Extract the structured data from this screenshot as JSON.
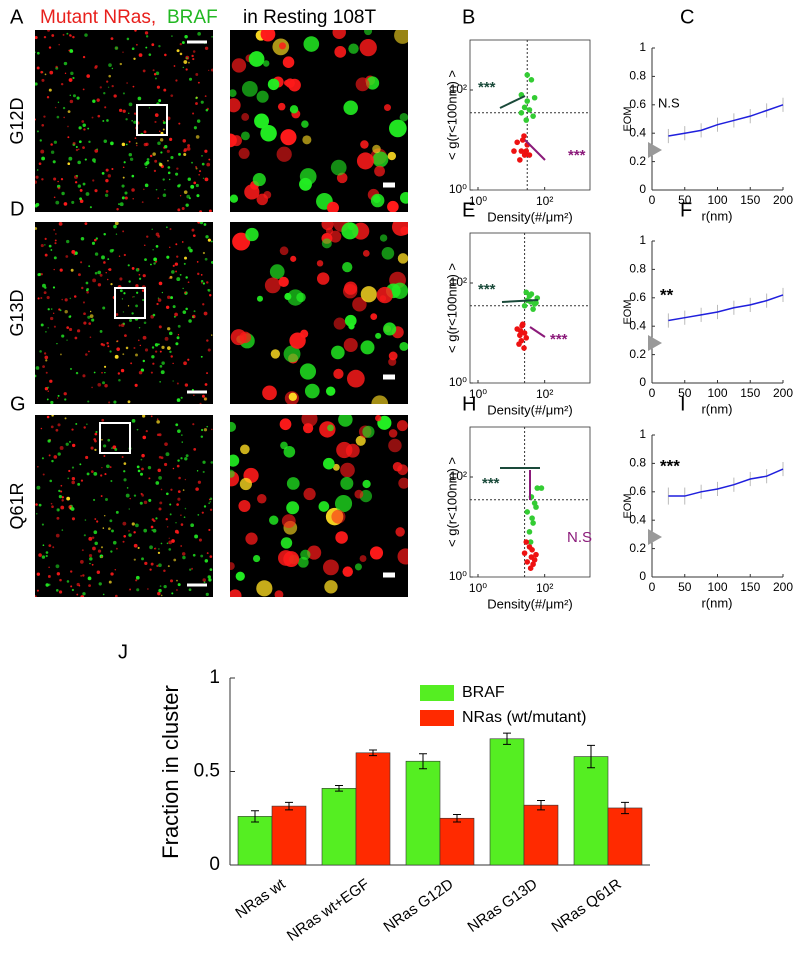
{
  "figure": {
    "header": {
      "label": "A",
      "parts": [
        {
          "text": "Mutant NRas,",
          "color": "#e8201c"
        },
        {
          "text": "BRAF",
          "color": "#22b822"
        },
        {
          "text": "in Resting 108T",
          "color": "#000000"
        }
      ]
    },
    "image_rows": [
      {
        "label": "A",
        "row": "G12D"
      },
      {
        "label": "D",
        "row": "G13D"
      },
      {
        "label": "G",
        "row": "Q61R"
      }
    ]
  },
  "chart_data": [
    {
      "type": "scatter",
      "label": "B",
      "xlabel": "Density(#/μm²)",
      "ylabel": "< g(r<100nm) >",
      "log": true,
      "xlim": [
        1,
        1000
      ],
      "ylim": [
        1,
        1000
      ],
      "xticks": [
        {
          "value": 1,
          "label": "10⁰"
        },
        {
          "value": 100,
          "label": "10²"
        }
      ],
      "yticks": [
        {
          "value": 1,
          "label": "10⁰"
        },
        {
          "value": 100,
          "label": "10²"
        }
      ],
      "reflines": {
        "x": 30,
        "y": 35
      },
      "series": [
        {
          "color": "#33cc33",
          "x": [
            20,
            30,
            40,
            30,
            25,
            35,
            45,
            20,
            28,
            50
          ],
          "y": [
            80,
            200,
            160,
            60,
            45,
            40,
            30,
            35,
            25,
            70
          ]
        },
        {
          "color": "#ee1111",
          "x": [
            15,
            20,
            25,
            18,
            30,
            22,
            28,
            35,
            12,
            24
          ],
          "y": [
            9,
            6,
            5,
            4,
            8,
            10,
            6,
            5,
            6,
            12
          ]
        }
      ],
      "annotations": [
        {
          "text": "***",
          "color": "#1a4a3a"
        },
        {
          "text": "***",
          "color": "#8b1a7a"
        }
      ]
    },
    {
      "type": "line",
      "label": "C",
      "xlabel": "r(nm)",
      "ylabel": "EOM",
      "xlim": [
        0,
        200
      ],
      "ylim": [
        0,
        1
      ],
      "xticks": [
        0,
        50,
        100,
        150,
        200
      ],
      "yticks": [
        0,
        0.2,
        0.4,
        0.6,
        0.8,
        1
      ],
      "x": [
        25,
        50,
        75,
        100,
        125,
        150,
        175,
        200
      ],
      "series": [
        {
          "color": "#1f1fdd",
          "values": [
            0.38,
            0.4,
            0.42,
            0.46,
            0.49,
            0.52,
            0.56,
            0.6
          ],
          "errors": [
            0.05,
            0.05,
            0.05,
            0.05,
            0.05,
            0.05,
            0.05,
            0.05
          ]
        }
      ],
      "annotations": [
        {
          "text": "N.S",
          "color": "#000000"
        }
      ]
    },
    {
      "type": "scatter",
      "label": "E",
      "xlabel": "Density(#/μm²)",
      "ylabel": "< g(r<100nm) >",
      "log": true,
      "xlim": [
        1,
        1000
      ],
      "ylim": [
        1,
        1000
      ],
      "xticks": [
        {
          "value": 1,
          "label": "10⁰"
        },
        {
          "value": 100,
          "label": "10²"
        }
      ],
      "yticks": [
        {
          "value": 1,
          "label": "10⁰"
        },
        {
          "value": 100,
          "label": "10²"
        }
      ],
      "reflines": {
        "x": 25,
        "y": 35
      },
      "series": [
        {
          "color": "#33cc33",
          "x": [
            30,
            40,
            55,
            25,
            45,
            60,
            35,
            50,
            28,
            38
          ],
          "y": [
            45,
            60,
            40,
            35,
            30,
            50,
            55,
            38,
            65,
            42
          ]
        },
        {
          "color": "#ee1111",
          "x": [
            15,
            18,
            22,
            20,
            25,
            17,
            28,
            24,
            19,
            21
          ],
          "y": [
            12,
            9,
            15,
            7,
            10,
            6,
            8,
            5,
            11,
            14
          ]
        }
      ],
      "annotations": [
        {
          "text": "***",
          "color": "#1a4a3a"
        },
        {
          "text": "***",
          "color": "#8b1a7a"
        }
      ]
    },
    {
      "type": "line",
      "label": "F",
      "xlabel": "r(nm)",
      "ylabel": "EOM",
      "xlim": [
        0,
        200
      ],
      "ylim": [
        0,
        1
      ],
      "xticks": [
        0,
        50,
        100,
        150,
        200
      ],
      "yticks": [
        0,
        0.2,
        0.4,
        0.6,
        0.8,
        1
      ],
      "x": [
        25,
        50,
        75,
        100,
        125,
        150,
        175,
        200
      ],
      "series": [
        {
          "color": "#1f1fdd",
          "values": [
            0.44,
            0.46,
            0.48,
            0.5,
            0.53,
            0.55,
            0.58,
            0.62
          ],
          "errors": [
            0.05,
            0.05,
            0.05,
            0.05,
            0.05,
            0.05,
            0.05,
            0.05
          ]
        }
      ],
      "annotations": [
        {
          "text": "**",
          "color": "#000000"
        }
      ]
    },
    {
      "type": "scatter",
      "label": "H",
      "xlabel": "Density(#/μm²)",
      "ylabel": "< g(r<100nm) >",
      "log": true,
      "xlim": [
        1,
        1000
      ],
      "ylim": [
        1,
        1000
      ],
      "xticks": [
        {
          "value": 1,
          "label": "10⁰"
        },
        {
          "value": 100,
          "label": "10²"
        }
      ],
      "yticks": [
        {
          "value": 1,
          "label": "10⁰"
        },
        {
          "value": 100,
          "label": "10²"
        }
      ],
      "reflines": {
        "x": 25,
        "y": 35
      },
      "series": [
        {
          "color": "#33cc33",
          "x": [
            40,
            60,
            30,
            45,
            35,
            80,
            50,
            38,
            42,
            55
          ],
          "y": [
            40,
            60,
            20,
            12,
            8,
            60,
            30,
            5,
            15,
            25
          ]
        },
        {
          "color": "#ee1111",
          "x": [
            30,
            40,
            25,
            45,
            35,
            50,
            38,
            28,
            55,
            42
          ],
          "y": [
            2,
            2.5,
            3,
            1.8,
            4,
            2.2,
            1.5,
            5,
            2.8,
            3.5
          ]
        }
      ],
      "annotations": [
        {
          "text": "***",
          "color": "#1a4a3a"
        },
        {
          "text": "N.S",
          "color": "#8b1a7a"
        }
      ]
    },
    {
      "type": "line",
      "label": "I",
      "xlabel": "r(nm)",
      "ylabel": "EOM",
      "xlim": [
        0,
        200
      ],
      "ylim": [
        0,
        1
      ],
      "xticks": [
        0,
        50,
        100,
        150,
        200
      ],
      "yticks": [
        0,
        0.2,
        0.4,
        0.6,
        0.8,
        1
      ],
      "x": [
        25,
        50,
        75,
        100,
        125,
        150,
        175,
        200
      ],
      "series": [
        {
          "color": "#1f1fdd",
          "values": [
            0.57,
            0.57,
            0.6,
            0.62,
            0.65,
            0.69,
            0.71,
            0.76
          ],
          "errors": [
            0.06,
            0.06,
            0.05,
            0.05,
            0.05,
            0.05,
            0.05,
            0.05
          ]
        }
      ],
      "annotations": [
        {
          "text": "***",
          "color": "#000000"
        }
      ]
    },
    {
      "type": "bar",
      "label": "J",
      "ylabel": "Fraction in cluster",
      "categories": [
        "NRas wt",
        "NRas wt+EGF",
        "NRas G12D",
        "NRas G13D",
        "NRas Q61R"
      ],
      "ylim": [
        0,
        1
      ],
      "yticks": [
        0,
        0.5,
        1
      ],
      "series": [
        {
          "name": "BRAF",
          "color": "#55ee22",
          "values": [
            0.26,
            0.41,
            0.555,
            0.675,
            0.58
          ],
          "errors": [
            0.03,
            0.015,
            0.04,
            0.03,
            0.06
          ]
        },
        {
          "name": "NRas (wt/mutant)",
          "color": "#ff2a00",
          "values": [
            0.315,
            0.6,
            0.25,
            0.32,
            0.305
          ],
          "errors": [
            0.02,
            0.015,
            0.02,
            0.025,
            0.03
          ]
        }
      ]
    }
  ]
}
